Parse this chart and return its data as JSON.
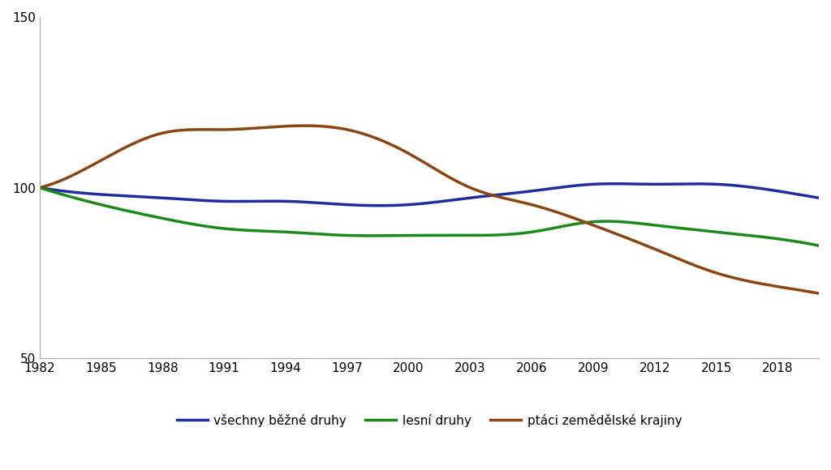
{
  "title": "",
  "years": [
    1982,
    1985,
    1988,
    1991,
    1994,
    1997,
    2000,
    2003,
    2006,
    2009,
    2012,
    2015,
    2018,
    2020
  ],
  "vsechny": [
    100,
    98,
    97,
    96,
    96,
    95,
    95,
    97,
    99,
    101,
    101,
    101,
    99,
    97
  ],
  "lesni": [
    100,
    95,
    91,
    88,
    87,
    86,
    86,
    86,
    87,
    90,
    89,
    87,
    85,
    83
  ],
  "ptaci": [
    100,
    108,
    116,
    117,
    118,
    117,
    110,
    100,
    95,
    89,
    82,
    75,
    71,
    69
  ],
  "color_vsechny": "#1f2d9e",
  "color_lesni": "#1a8a1a",
  "color_ptaci": "#8B4513",
  "legend_labels": [
    "všechny běžné druhy",
    "lesní druhy",
    "ptáci zemědělské krajiny"
  ],
  "xlim": [
    1982,
    2020
  ],
  "ylim": [
    50,
    150
  ],
  "yticks": [
    50,
    100,
    150
  ],
  "xticks": [
    1982,
    1985,
    1988,
    1991,
    1994,
    1997,
    2000,
    2003,
    2006,
    2009,
    2012,
    2015,
    2018
  ],
  "linewidth": 2.5,
  "background_color": "#ffffff",
  "spine_color": "#aaaaaa"
}
